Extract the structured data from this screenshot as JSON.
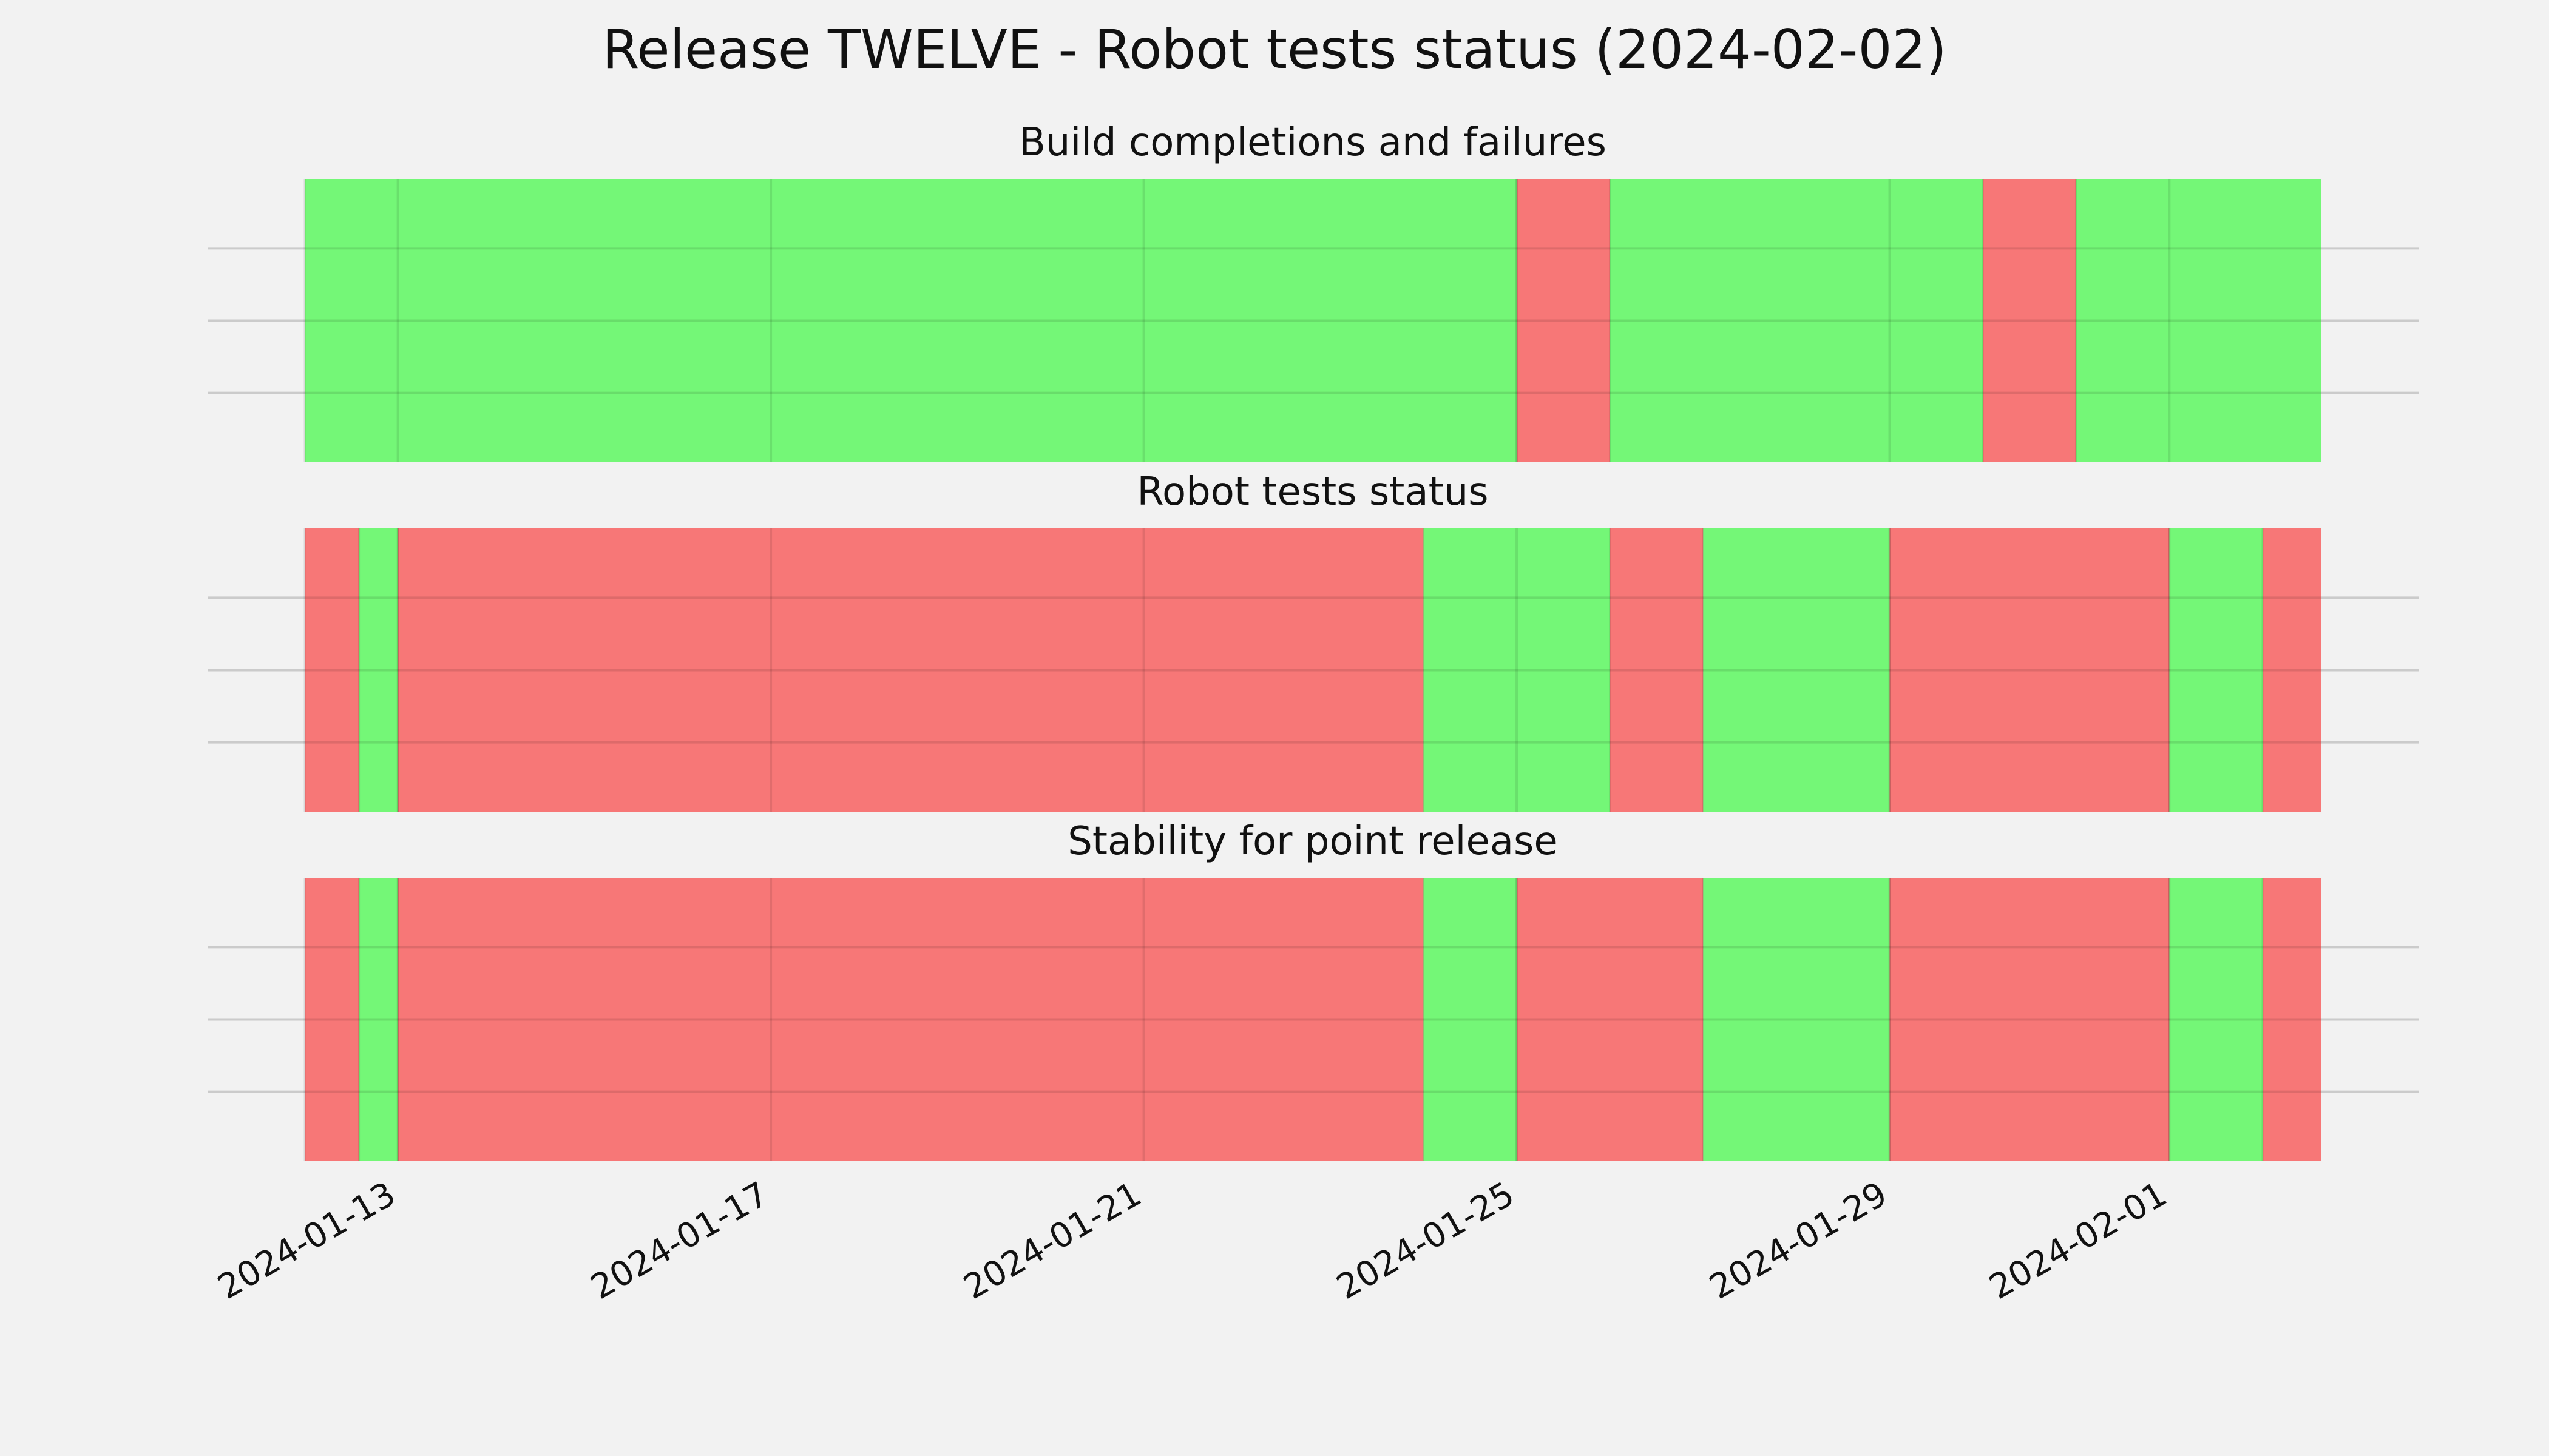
{
  "chart_data": {
    "type": "timeline",
    "title": "Release TWELVE - Robot tests status (2024-02-02)",
    "x_range": [
      "2024-01-12",
      "2024-02-02T15:00"
    ],
    "x_ticks": [
      {
        "date": "2024-01-13",
        "label": "2024-01-13"
      },
      {
        "date": "2024-01-17",
        "label": "2024-01-17"
      },
      {
        "date": "2024-01-21",
        "label": "2024-01-21"
      },
      {
        "date": "2024-01-25",
        "label": "2024-01-25"
      },
      {
        "date": "2024-01-29",
        "label": "2024-01-29"
      },
      {
        "date": "2024-02-01",
        "label": "2024-02-01"
      }
    ],
    "grid": true,
    "colors": {
      "pass": "#74f777",
      "fail": "#f77777",
      "background": "#f2f2f2"
    },
    "panels": [
      {
        "title": "Build completions and failures",
        "segments": [
          {
            "start": "2024-01-12T00:00",
            "end": "2024-01-25T00:00",
            "status": "pass"
          },
          {
            "start": "2024-01-25T00:00",
            "end": "2024-01-26T00:00",
            "status": "fail"
          },
          {
            "start": "2024-01-26T00:00",
            "end": "2024-01-30T00:00",
            "status": "pass"
          },
          {
            "start": "2024-01-30T00:00",
            "end": "2024-01-31T00:00",
            "status": "fail"
          },
          {
            "start": "2024-01-31T00:00",
            "end": "2024-02-02T15:00",
            "status": "pass"
          }
        ]
      },
      {
        "title": "Robot tests status",
        "segments": [
          {
            "start": "2024-01-12T00:00",
            "end": "2024-01-12T14:00",
            "status": "fail"
          },
          {
            "start": "2024-01-12T14:00",
            "end": "2024-01-13T00:00",
            "status": "pass"
          },
          {
            "start": "2024-01-13T00:00",
            "end": "2024-01-24T00:00",
            "status": "fail"
          },
          {
            "start": "2024-01-24T00:00",
            "end": "2024-01-26T00:00",
            "status": "pass"
          },
          {
            "start": "2024-01-26T00:00",
            "end": "2024-01-27T00:00",
            "status": "fail"
          },
          {
            "start": "2024-01-27T00:00",
            "end": "2024-01-29T00:00",
            "status": "pass"
          },
          {
            "start": "2024-01-29T00:00",
            "end": "2024-02-01T00:00",
            "status": "fail"
          },
          {
            "start": "2024-02-01T00:00",
            "end": "2024-02-02T00:00",
            "status": "pass"
          },
          {
            "start": "2024-02-02T00:00",
            "end": "2024-02-02T15:00",
            "status": "fail"
          }
        ]
      },
      {
        "title": "Stability for point release",
        "segments": [
          {
            "start": "2024-01-12T00:00",
            "end": "2024-01-12T14:00",
            "status": "fail"
          },
          {
            "start": "2024-01-12T14:00",
            "end": "2024-01-13T00:00",
            "status": "pass"
          },
          {
            "start": "2024-01-13T00:00",
            "end": "2024-01-24T00:00",
            "status": "fail"
          },
          {
            "start": "2024-01-24T00:00",
            "end": "2024-01-25T00:00",
            "status": "pass"
          },
          {
            "start": "2024-01-25T00:00",
            "end": "2024-01-27T00:00",
            "status": "fail"
          },
          {
            "start": "2024-01-27T00:00",
            "end": "2024-01-29T00:00",
            "status": "pass"
          },
          {
            "start": "2024-01-29T00:00",
            "end": "2024-02-01T00:00",
            "status": "fail"
          },
          {
            "start": "2024-02-01T00:00",
            "end": "2024-02-02T00:00",
            "status": "pass"
          },
          {
            "start": "2024-02-02T00:00",
            "end": "2024-02-02T15:00",
            "status": "fail"
          }
        ]
      }
    ]
  }
}
